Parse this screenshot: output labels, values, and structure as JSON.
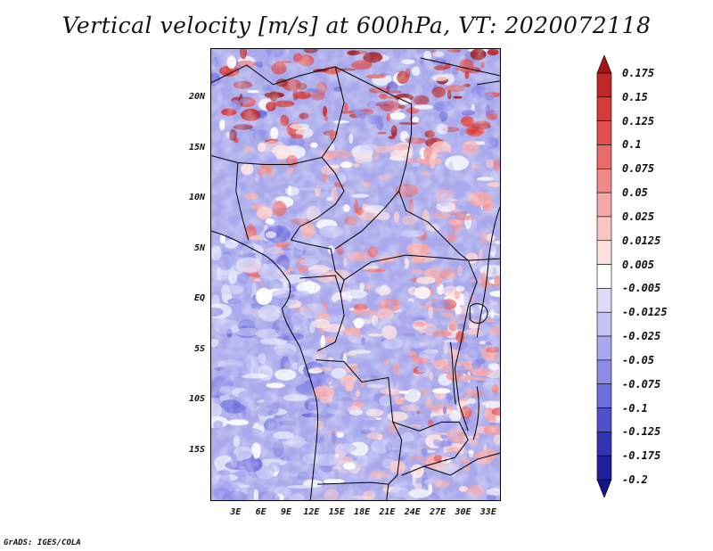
{
  "title": "Vertical velocity [m/s] at 600hPa, VT: 2020072118",
  "credit": "GrADS: IGES/COLA",
  "map": {
    "lat_ticks": [
      {
        "label": "20N",
        "value": 20
      },
      {
        "label": "15N",
        "value": 15
      },
      {
        "label": "10N",
        "value": 10
      },
      {
        "label": "5N",
        "value": 5
      },
      {
        "label": "EQ",
        "value": 0
      },
      {
        "label": "5S",
        "value": -5
      },
      {
        "label": "10S",
        "value": -10
      },
      {
        "label": "15S",
        "value": -15
      }
    ],
    "lon_ticks": [
      {
        "label": "3E",
        "value": 3
      },
      {
        "label": "6E",
        "value": 6
      },
      {
        "label": "9E",
        "value": 9
      },
      {
        "label": "12E",
        "value": 12
      },
      {
        "label": "15E",
        "value": 15
      },
      {
        "label": "18E",
        "value": 18
      },
      {
        "label": "21E",
        "value": 21
      },
      {
        "label": "24E",
        "value": 24
      },
      {
        "label": "27E",
        "value": 27
      },
      {
        "label": "30E",
        "value": 30
      },
      {
        "label": "33E",
        "value": 33
      }
    ],
    "lat_range": [
      -20,
      25
    ],
    "lon_range": [
      0,
      34.5
    ]
  },
  "colorbar": {
    "labels": [
      "0.175",
      "0.15",
      "0.125",
      "0.1",
      "0.075",
      "0.05",
      "0.025",
      "0.0125",
      "0.005",
      "-0.005",
      "-0.0125",
      "-0.025",
      "-0.05",
      "-0.075",
      "-0.1",
      "-0.125",
      "-0.175",
      "-0.2"
    ],
    "colors": [
      "#a01818",
      "#c02828",
      "#d43a3a",
      "#e05050",
      "#e86a6a",
      "#f08a8a",
      "#f5a8a8",
      "#f8c4c4",
      "#fbe0e0",
      "#ffffff",
      "#dcdcf8",
      "#c4c4f4",
      "#a8a8ee",
      "#8c8ce6",
      "#6e6ede",
      "#5050cc",
      "#3232b4",
      "#20209c",
      "#14148a"
    ]
  }
}
